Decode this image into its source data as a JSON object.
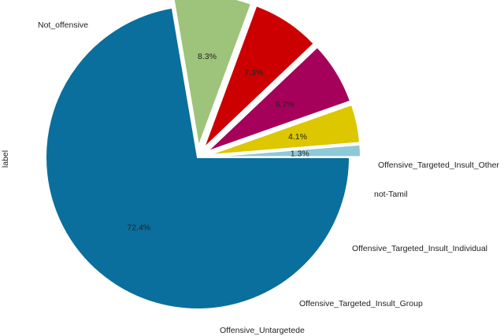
{
  "chart_data": {
    "type": "pie",
    "ylabel": "label",
    "slices": [
      {
        "label": "Not_offensive",
        "value": 72.4,
        "pct_label": "72.4%",
        "color": "#0a6f9c"
      },
      {
        "label": "Offensive_Untargetede",
        "value": 8.3,
        "pct_label": "8.3%",
        "color": "#9dc47a"
      },
      {
        "label": "Offensive_Targeted_Insult_Group",
        "value": 7.3,
        "pct_label": "7.3%",
        "color": "#cc0000"
      },
      {
        "label": "Offensive_Targeted_Insult_Individual",
        "value": 6.7,
        "pct_label": "6.7%",
        "color": "#a5005a"
      },
      {
        "label": "not-Tamil",
        "value": 4.1,
        "pct_label": "4.1%",
        "color": "#dcc700"
      },
      {
        "label": "Offensive_Targeted_Insult_Other",
        "value": 1.3,
        "pct_label": "1.3%",
        "color": "#8ec9d8"
      }
    ]
  }
}
